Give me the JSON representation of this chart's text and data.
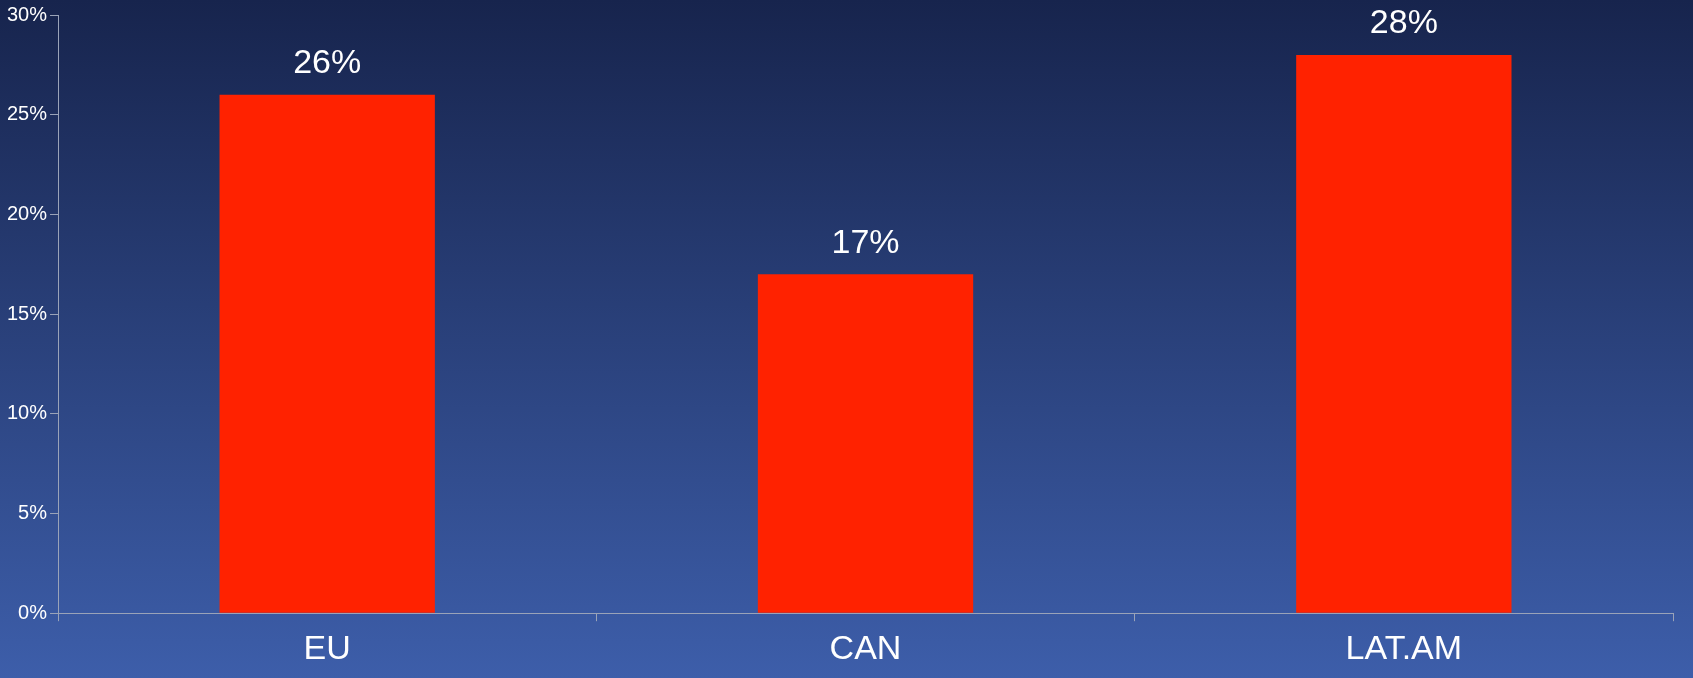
{
  "chart_data": {
    "type": "bar",
    "categories": [
      "EU",
      "CAN",
      "LAT.AM"
    ],
    "values": [
      26,
      17,
      28
    ],
    "color": "#ff2200",
    "value_labels": [
      "26%",
      "17%",
      "28%"
    ],
    "ylim": [
      0,
      30
    ],
    "yticks": [
      {
        "value": 0,
        "label": "0%"
      },
      {
        "value": 5,
        "label": "5%"
      },
      {
        "value": 10,
        "label": "10%"
      },
      {
        "value": 15,
        "label": "15%"
      },
      {
        "value": 20,
        "label": "20%"
      },
      {
        "value": 25,
        "label": "25%"
      },
      {
        "value": 30,
        "label": "30%"
      }
    ],
    "grid": false,
    "legend": false
  }
}
